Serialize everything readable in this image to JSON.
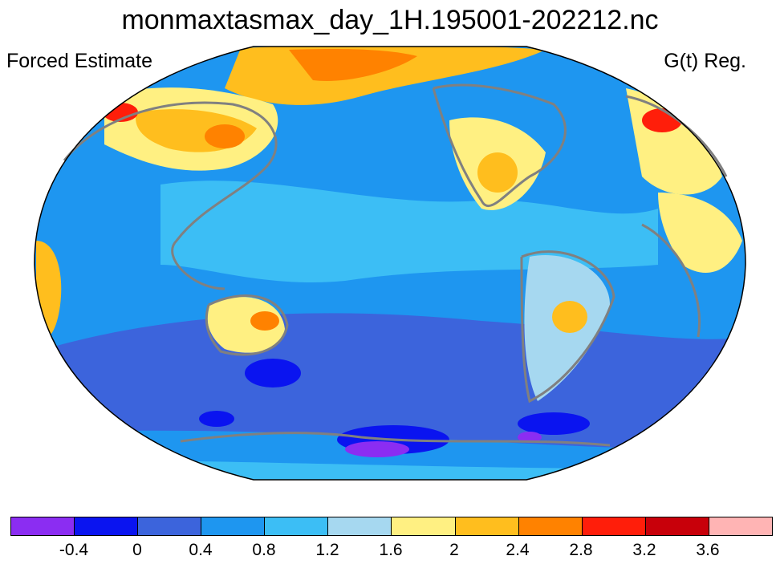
{
  "title": "monmaxtasmax_day_1H.195001-202212.nc",
  "left_label": "Forced Estimate",
  "right_label": "G(t) Reg.",
  "projection": "Robinson",
  "colorbar": {
    "colors": [
      "#8b2df2",
      "#0a14f0",
      "#3c64dc",
      "#1e96f0",
      "#3cbef5",
      "#a6d8f0",
      "#fff082",
      "#ffbe1e",
      "#ff8200",
      "#ff1e0a",
      "#c8000a",
      "#ffb4b4"
    ],
    "labels": [
      "-0.4",
      "0",
      "0.4",
      "0.8",
      "1.2",
      "1.6",
      "2",
      "2.4",
      "2.8",
      "3.2",
      "3.6"
    ]
  }
}
